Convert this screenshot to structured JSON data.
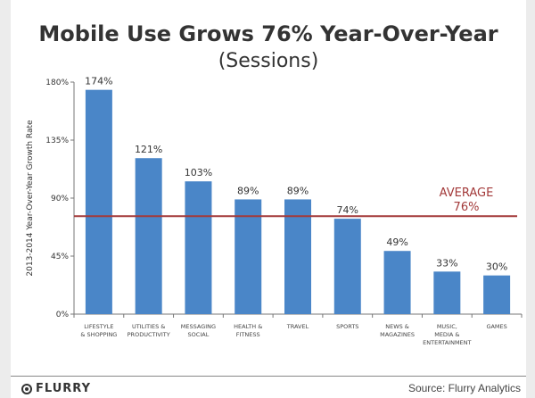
{
  "chart_data": {
    "type": "bar",
    "title": "Mobile Use Grows 76% Year-Over-Year",
    "subtitle": "(Sessions)",
    "ylabel": "2013-2014 Year-Over-Year Growth Rate",
    "xlabel": "",
    "ylim": [
      0,
      180
    ],
    "yticks": [
      "0%",
      "45%",
      "90%",
      "135%",
      "180%"
    ],
    "categories": [
      [
        "LIFESTYLE",
        "& SHOPPING"
      ],
      [
        "UTILITIES &",
        "PRODUCTIVITY"
      ],
      [
        "MESSAGING",
        "SOCIAL"
      ],
      [
        "HEALTH &",
        "FITNESS"
      ],
      [
        "TRAVEL"
      ],
      [
        "SPORTS"
      ],
      [
        "NEWS &",
        "MAGAZINES"
      ],
      [
        "MUSIC,",
        "MEDIA &",
        "ENTERTAINMENT"
      ],
      [
        "GAMES"
      ]
    ],
    "values": [
      174,
      121,
      103,
      89,
      89,
      74,
      49,
      33,
      30
    ],
    "data_labels": [
      "174%",
      "121%",
      "103%",
      "89%",
      "89%",
      "74%",
      "49%",
      "33%",
      "30%"
    ],
    "reference_line": {
      "value": 76,
      "label": "AVERAGE",
      "value_label": "76%",
      "color": "#a33a3a"
    },
    "bar_color": "#4a86c8",
    "grid": false
  },
  "footer": {
    "logo": "FLURRY",
    "source": "Source: Flurry Analytics"
  }
}
